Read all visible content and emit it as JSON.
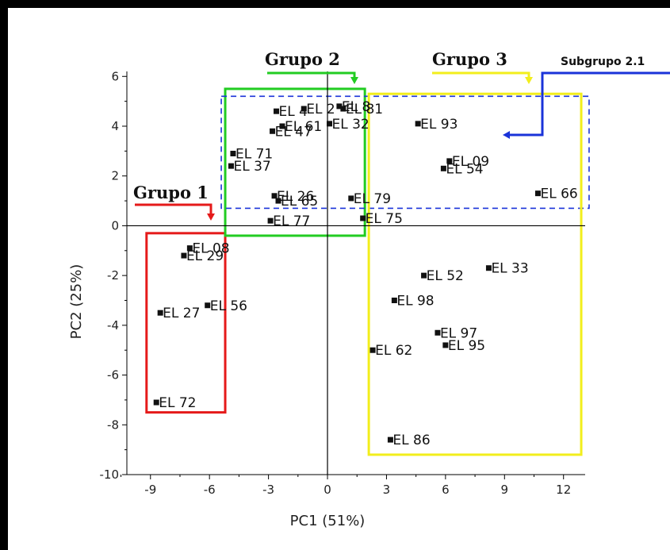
{
  "chart_data": {
    "type": "scatter",
    "xlabel": "PC1 (51%)",
    "ylabel": "PC2 (25%)",
    "xlim": [
      -10.2,
      13.1
    ],
    "ylim": [
      -10,
      6.2
    ],
    "xticks": [
      -9,
      -6,
      -3,
      0,
      3,
      6,
      9,
      12
    ],
    "yticks": [
      6,
      4,
      2,
      0,
      -2,
      -4,
      -6,
      -8,
      -10
    ],
    "grid": false,
    "zero_lines": true,
    "points": [
      {
        "label": "EL 08",
        "x": -7.0,
        "y": -0.9
      },
      {
        "label": "EL 29",
        "x": -7.3,
        "y": -1.2
      },
      {
        "label": "EL 27",
        "x": -8.5,
        "y": -3.5
      },
      {
        "label": "EL 56",
        "x": -6.1,
        "y": -3.2
      },
      {
        "label": "EL 72",
        "x": -8.7,
        "y": -7.1
      },
      {
        "label": "EL 71",
        "x": -4.8,
        "y": 2.9
      },
      {
        "label": "EL 37",
        "x": -4.9,
        "y": 2.4
      },
      {
        "label": "EL 26",
        "x": -2.7,
        "y": 1.2
      },
      {
        "label": "EL 65",
        "x": -2.5,
        "y": 1.0
      },
      {
        "label": "EL 77",
        "x": -2.9,
        "y": 0.2
      },
      {
        "label": "EL 61",
        "x": -2.3,
        "y": 4.0
      },
      {
        "label": "EL 47",
        "x": -2.8,
        "y": 3.8
      },
      {
        "label": "EL 4",
        "x": -2.6,
        "y": 4.6
      },
      {
        "label": "EL 2",
        "x": -1.2,
        "y": 4.7
      },
      {
        "label": "EL 8",
        "x": 0.6,
        "y": 4.8
      },
      {
        "label": "EL 81",
        "x": 0.8,
        "y": 4.7
      },
      {
        "label": "EL 32",
        "x": 0.1,
        "y": 4.1
      },
      {
        "label": "EL 79",
        "x": 1.2,
        "y": 1.1
      },
      {
        "label": "EL 75",
        "x": 1.8,
        "y": 0.3
      },
      {
        "label": "EL 93",
        "x": 4.6,
        "y": 4.1
      },
      {
        "label": "EL 09",
        "x": 6.2,
        "y": 2.6
      },
      {
        "label": "EL 54",
        "x": 5.9,
        "y": 2.3
      },
      {
        "label": "EL 66",
        "x": 10.7,
        "y": 1.3
      },
      {
        "label": "EL 52",
        "x": 4.9,
        "y": -2.0
      },
      {
        "label": "EL 33",
        "x": 8.2,
        "y": -1.7
      },
      {
        "label": "EL 98",
        "x": 3.4,
        "y": -3.0
      },
      {
        "label": "EL 97",
        "x": 5.6,
        "y": -4.3
      },
      {
        "label": "EL 95",
        "x": 6.0,
        "y": -4.8
      },
      {
        "label": "EL 62",
        "x": 2.3,
        "y": -5.0
      },
      {
        "label": "EL 86",
        "x": 3.2,
        "y": -8.6
      }
    ],
    "annotations": [
      {
        "text": "Grupo 1",
        "color": "#e51a1a"
      },
      {
        "text": "Grupo 2",
        "color": "#22cc22"
      },
      {
        "text": "Grupo 3",
        "color": "#f2ee1c"
      },
      {
        "text": "Subgrupo 2.1",
        "color": "#1a33d9"
      }
    ],
    "regions": [
      {
        "group": "Grupo 1",
        "color": "#e51a1a",
        "style": "solid",
        "x": [
          -9.2,
          -5.2
        ],
        "y": [
          -7.5,
          -0.3
        ]
      },
      {
        "group": "Grupo 2",
        "color": "#22cc22",
        "style": "solid",
        "x": [
          -5.2,
          1.9
        ],
        "y": [
          -0.4,
          5.5
        ]
      },
      {
        "group": "Subgrupo 2.1",
        "color": "#1a33d9",
        "style": "dashed",
        "x": [
          -5.4,
          13.3
        ],
        "y": [
          0.7,
          5.2
        ]
      },
      {
        "group": "Grupo 3",
        "color": "#f2ee1c",
        "style": "solid",
        "x": [
          2.1,
          12.9
        ],
        "y": [
          -9.2,
          5.3
        ]
      }
    ]
  }
}
